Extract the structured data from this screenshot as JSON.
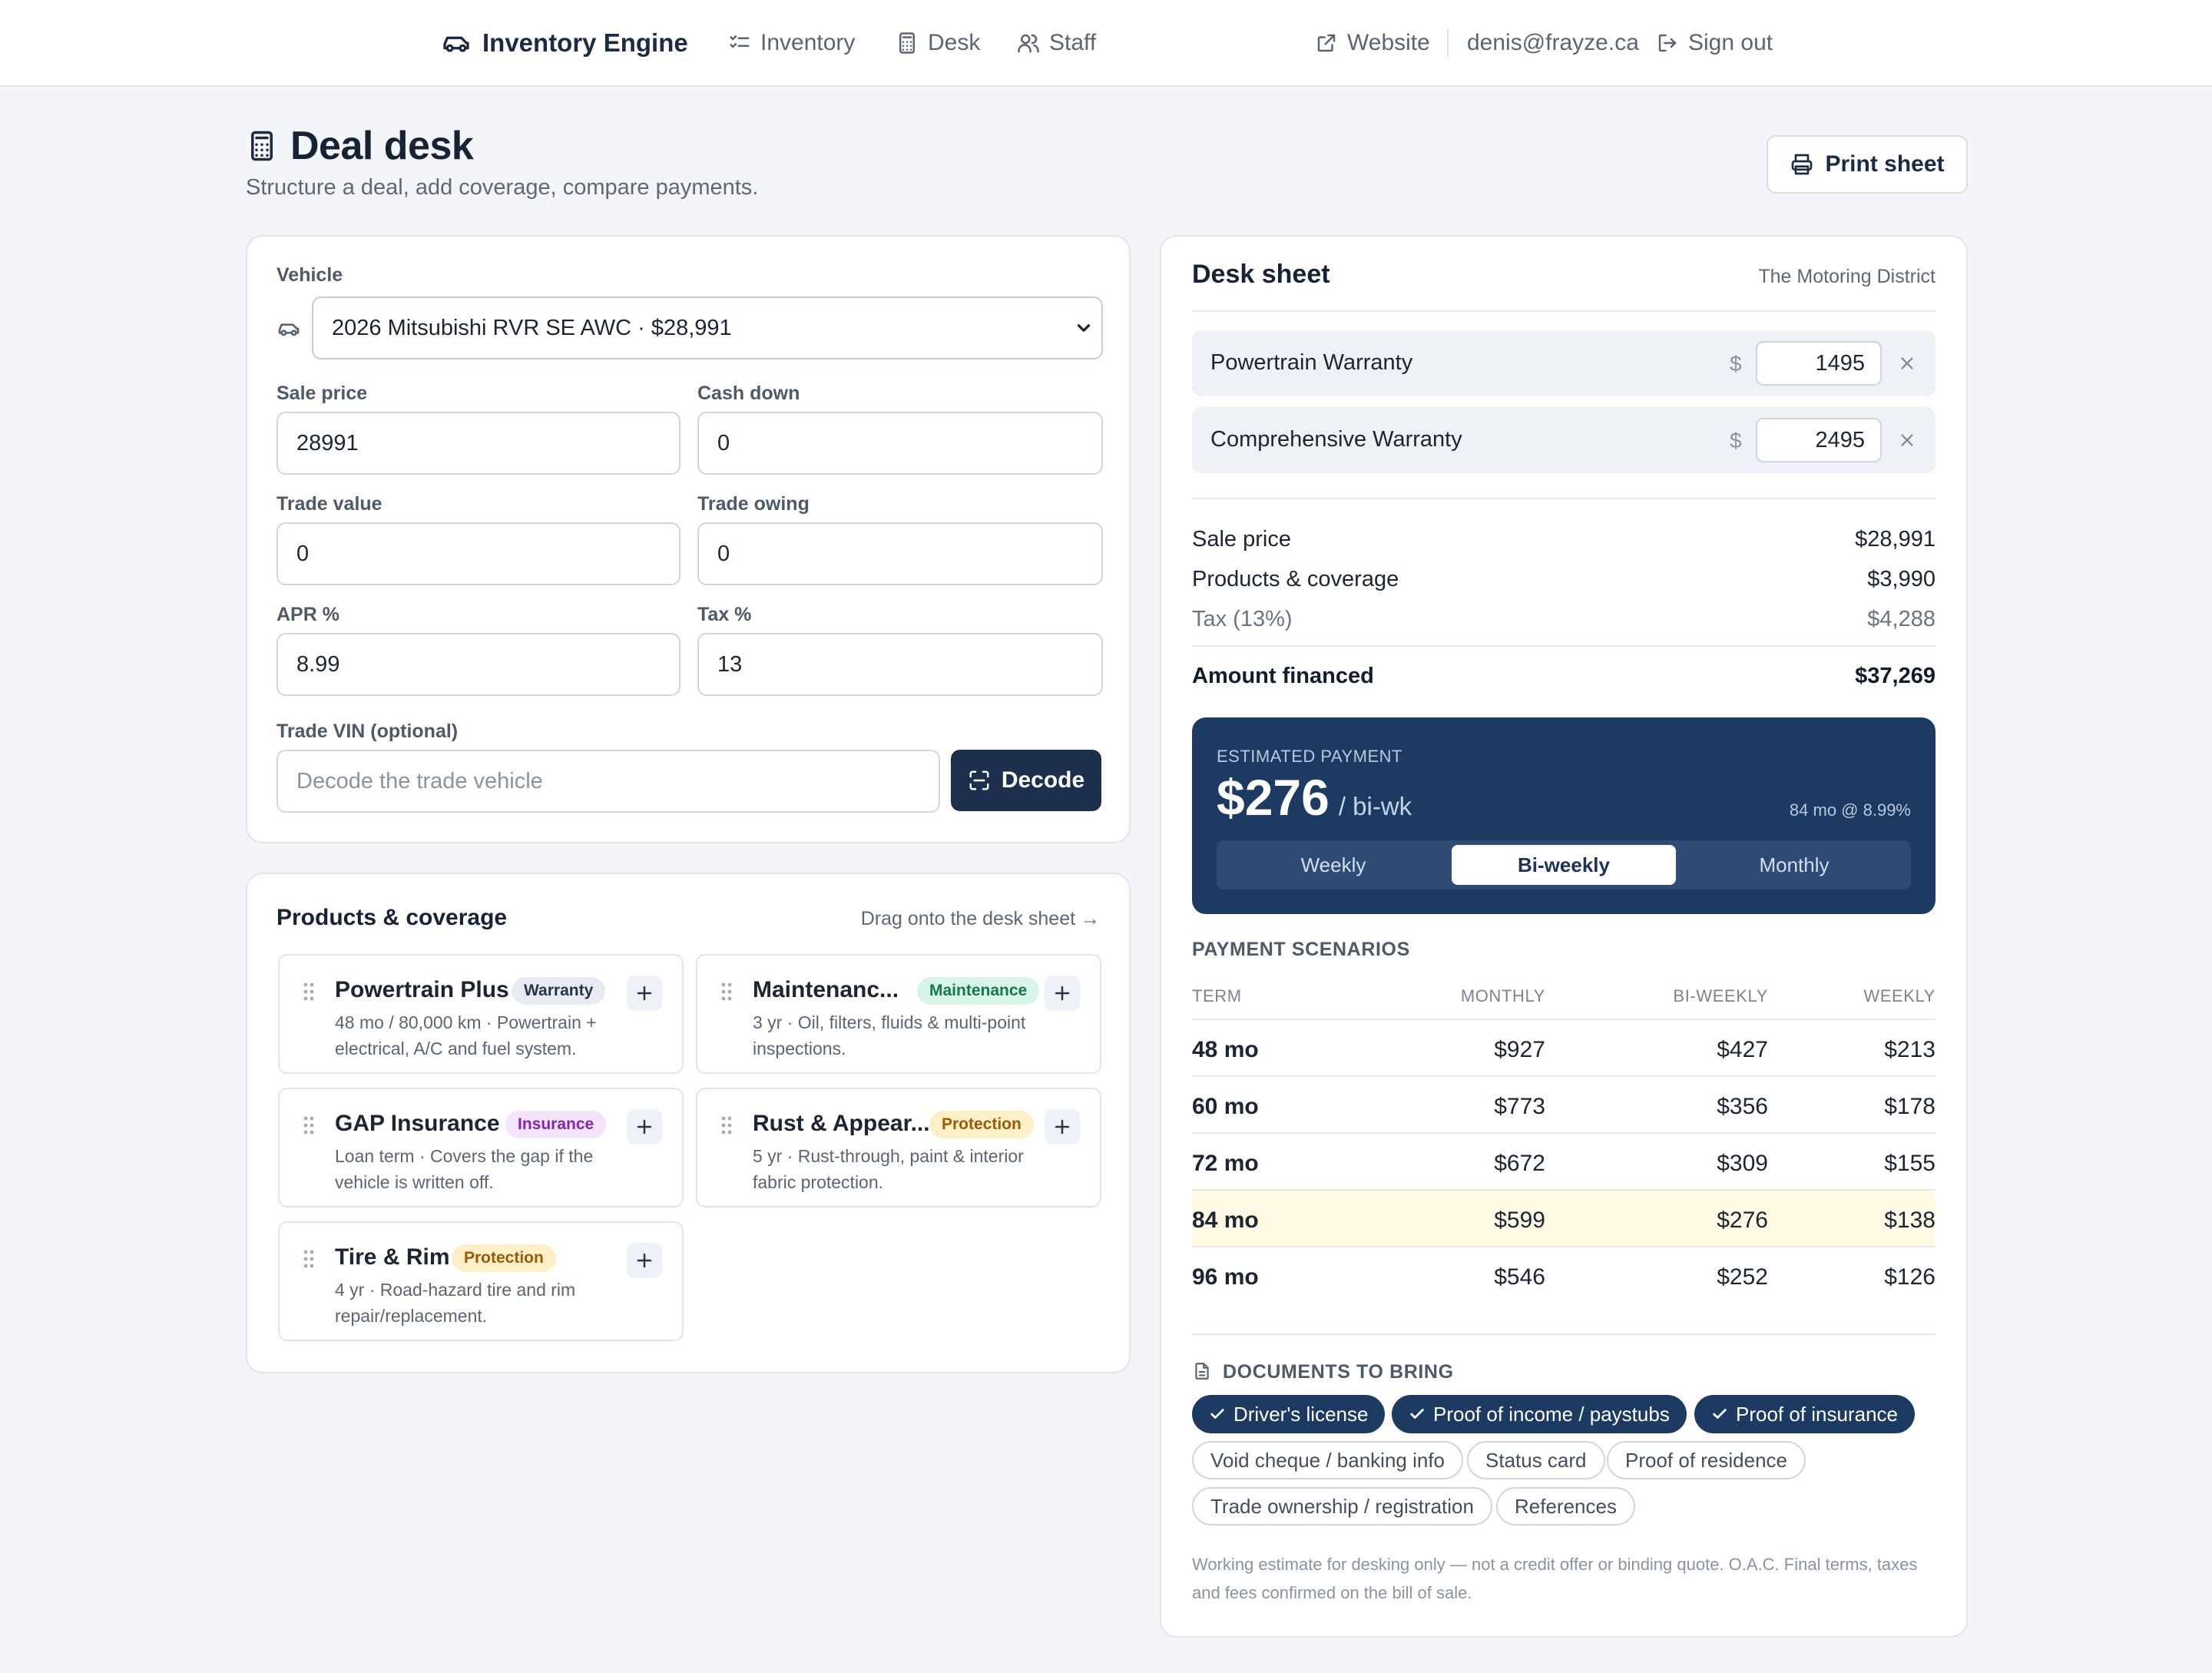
{
  "nav": {
    "brand": "Inventory Engine",
    "links": [
      "Inventory",
      "Desk",
      "Staff"
    ],
    "website": "Website",
    "user_email": "denis@frayze.ca",
    "sign_out": "Sign out"
  },
  "header": {
    "title": "Deal desk",
    "subtitle": "Structure a deal, add coverage, compare payments.",
    "print_label": "Print sheet"
  },
  "deal_form": {
    "vehicle_label": "Vehicle",
    "vehicle_value": "2026 Mitsubishi RVR SE AWC · $28,991",
    "sale_price_label": "Sale price",
    "sale_price": "28991",
    "cash_down_label": "Cash down",
    "cash_down": "0",
    "trade_value_label": "Trade value",
    "trade_value": "0",
    "trade_owing_label": "Trade owing",
    "trade_owing": "0",
    "apr_label": "APR %",
    "apr": "8.99",
    "tax_label": "Tax %",
    "tax": "13",
    "vin_label": "Trade VIN (optional)",
    "vin_placeholder": "Decode the trade vehicle",
    "decode_label": "Decode"
  },
  "products": {
    "title": "Products & coverage",
    "hint": "Drag onto the desk sheet →",
    "items": [
      {
        "name": "Powertrain Plus",
        "badge": "Warranty",
        "desc": "48 mo / 80,000 km · Powertrain + electrical, A/C and fuel system."
      },
      {
        "name": "Maintenanc...",
        "badge": "Maintenance",
        "desc": "3 yr · Oil, filters, fluids & multi-point inspections."
      },
      {
        "name": "GAP Insurance",
        "badge": "Insurance",
        "desc": "Loan term · Covers the gap if the vehicle is written off."
      },
      {
        "name": "Rust & Appear...",
        "badge": "Protection",
        "desc": "5 yr · Rust-through, paint & interior fabric protection."
      },
      {
        "name": "Tire & Rim",
        "badge": "Protection",
        "desc": "4 yr · Road-hazard tire and rim repair/replacement."
      }
    ]
  },
  "desk_sheet": {
    "title": "Desk sheet",
    "dealer": "The Motoring District",
    "coverage": [
      {
        "name": "Powertrain Warranty",
        "currency": "$",
        "amount": "1495"
      },
      {
        "name": "Comprehensive Warranty",
        "currency": "$",
        "amount": "2495"
      }
    ],
    "summary": {
      "sale_price_label": "Sale price",
      "sale_price": "$28,991",
      "products_label": "Products & coverage",
      "products": "$3,990",
      "tax_label": "Tax (13%)",
      "tax": "$4,288",
      "financed_label": "Amount financed",
      "financed": "$37,269"
    },
    "estimate": {
      "label": "ESTIMATED PAYMENT",
      "amount": "$276",
      "period": "/ bi-wk",
      "term": "84 mo @ 8.99%",
      "frequencies": [
        "Weekly",
        "Bi-weekly",
        "Monthly"
      ],
      "selected_frequency": "Bi-weekly"
    },
    "scenarios": {
      "title": "PAYMENT SCENARIOS",
      "columns": [
        "TERM",
        "MONTHLY",
        "BI-WEEKLY",
        "WEEKLY"
      ],
      "rows": [
        [
          "48 mo",
          "$927",
          "$427",
          "$213"
        ],
        [
          "60 mo",
          "$773",
          "$356",
          "$178"
        ],
        [
          "72 mo",
          "$672",
          "$309",
          "$155"
        ],
        [
          "84 mo",
          "$599",
          "$276",
          "$138"
        ],
        [
          "96 mo",
          "$546",
          "$252",
          "$126"
        ]
      ],
      "highlighted_row": "84 mo"
    },
    "documents": {
      "title": "DOCUMENTS TO BRING",
      "items": [
        {
          "label": "Driver's license",
          "checked": true
        },
        {
          "label": "Proof of income / paystubs",
          "checked": true
        },
        {
          "label": "Proof of insurance",
          "checked": true
        },
        {
          "label": "Void cheque / banking info",
          "checked": false
        },
        {
          "label": "Status card",
          "checked": false
        },
        {
          "label": "Proof of residence",
          "checked": false
        },
        {
          "label": "Trade ownership / registration",
          "checked": false
        },
        {
          "label": "References",
          "checked": false
        }
      ]
    },
    "disclaimer": "Working estimate for desking only — not a credit offer or binding quote. O.A.C. Final terms, taxes and fees confirmed on the bill of sale."
  },
  "colors": {
    "brand_navy": "#1c2f4d",
    "estimate_bg": "#1d3a63",
    "highlight_row": "#fdf9e3",
    "page_bg": "#f3f5f8"
  }
}
